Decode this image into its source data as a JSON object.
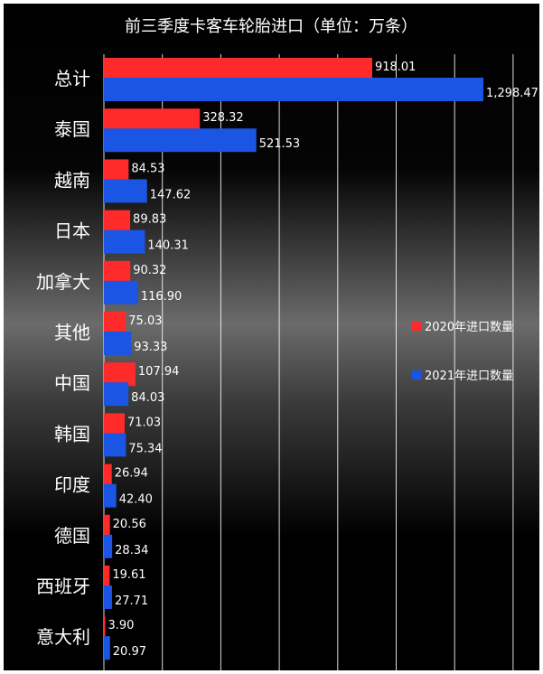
{
  "chart_data": {
    "type": "bar",
    "orientation": "horizontal",
    "title": "前三季度卡客车轮胎进口（单位：万条）",
    "xlabel": "",
    "ylabel": "",
    "xlim": [
      0,
      1400
    ],
    "grid": true,
    "legend_position": "right",
    "categories": [
      "总计",
      "泰国",
      "越南",
      "日本",
      "加拿大",
      "其他",
      "中国",
      "韩国",
      "印度",
      "德国",
      "西班牙",
      "意大利"
    ],
    "series": [
      {
        "name": "2020年进口数量",
        "color": "#ff2a2a",
        "values": [
          918.01,
          328.32,
          84.53,
          89.83,
          90.32,
          75.03,
          107.94,
          71.03,
          26.94,
          20.56,
          19.61,
          3.9
        ],
        "labels": [
          "918.01",
          "328.32",
          "84.53",
          "89.83",
          "90.32",
          "75.03",
          "107.94",
          "71.03",
          "26.94",
          "20.56",
          "19.61",
          "3.90"
        ]
      },
      {
        "name": "2021年进口数量",
        "color": "#1a55e3",
        "values": [
          1298.47,
          521.53,
          147.62,
          140.31,
          116.9,
          93.33,
          84.03,
          75.34,
          42.4,
          28.34,
          27.71,
          20.97
        ],
        "labels": [
          "1,298.47",
          "521.53",
          "147.62",
          "140.31",
          "116.90",
          "93.33",
          "84.03",
          "75.34",
          "42.40",
          "28.34",
          "27.71",
          "20.97"
        ]
      }
    ]
  }
}
